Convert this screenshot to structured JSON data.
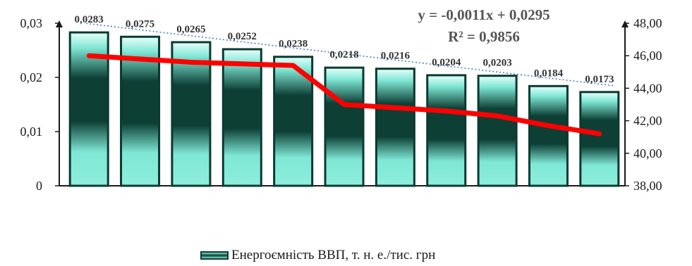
{
  "caption_fragment": "",
  "chart_data": {
    "type": "bar",
    "categories": [
      "",
      "",
      "",
      "",
      "",
      "",
      "",
      "",
      "",
      "",
      ""
    ],
    "series": [
      {
        "name": "Енергоємність ВВП, т. н. е./тис. грн",
        "axis": "left",
        "type": "bar",
        "values": [
          0.0283,
          0.0275,
          0.0265,
          0.0252,
          0.0238,
          0.0218,
          0.0216,
          0.0204,
          0.0203,
          0.0184,
          0.0173
        ],
        "labels": [
          "0,0283",
          "0,0275",
          "0,0265",
          "0,0252",
          "0,0238",
          "0,0218",
          "0,0216",
          "0,0204",
          "0,0203",
          "0,0184",
          "0,0173"
        ]
      },
      {
        "axis": "right",
        "type": "line",
        "values": [
          46.0,
          45.8,
          45.6,
          45.5,
          45.4,
          43.0,
          42.8,
          42.6,
          42.3,
          41.7,
          41.2
        ]
      }
    ],
    "trendline": {
      "type": "linear",
      "series": "Енергоємність ВВП, т. н. е./тис. грн",
      "equation": "y = -0,0011x + 0,0295",
      "r2": "R² = 0,9856"
    },
    "y_left": {
      "min": 0,
      "max": 0.03,
      "ticks": [
        "0",
        "0,01",
        "0,02",
        "0,03"
      ]
    },
    "y_right": {
      "min": 38,
      "max": 48,
      "ticks": [
        "38,00",
        "40,00",
        "42,00",
        "44,00",
        "46,00",
        "48,00"
      ]
    },
    "grid": false,
    "legend_position": "bottom",
    "colors": {
      "bar_border": "#0b3a30",
      "bar_light": "#7fe7d5",
      "bar_dark": "#0d3f35",
      "line": "#ff0000",
      "trendline": "#4a7fd0",
      "axis": "#1a1a1a"
    }
  }
}
